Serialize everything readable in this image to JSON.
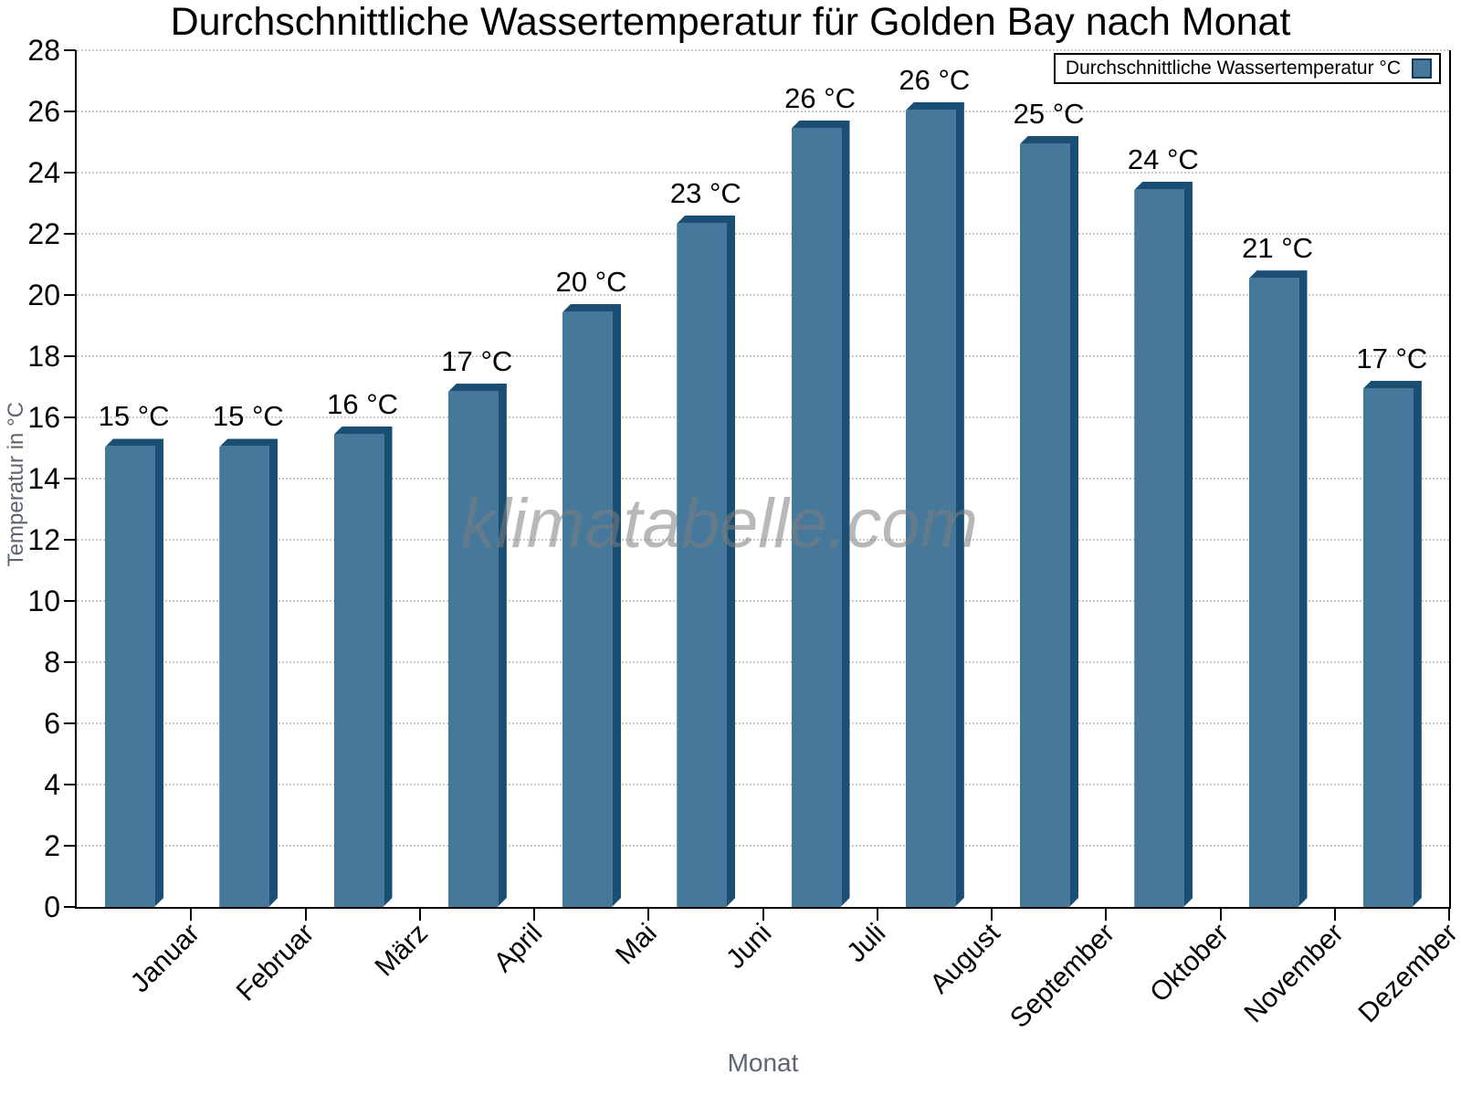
{
  "title": "Durchschnittliche Wassertemperatur für Golden Bay nach Monat",
  "legend": {
    "label": "Durchschnittliche Wassertemperatur °C"
  },
  "watermark": "klimatabelle.com",
  "axis_titles": {
    "x": "Monat",
    "y": "Temperatur in °C"
  },
  "chart_data": {
    "type": "bar",
    "title": "Durchschnittliche Wassertemperatur für Golden Bay nach Monat",
    "categories": [
      "Januar",
      "Februar",
      "März",
      "April",
      "Mai",
      "Juni",
      "Juli",
      "August",
      "September",
      "Oktober",
      "November",
      "Dezember"
    ],
    "values": [
      15.3,
      15.3,
      15.7,
      17.1,
      19.7,
      22.6,
      25.7,
      26.3,
      25.2,
      23.7,
      20.8,
      17.2
    ],
    "bar_labels": [
      "15 °C",
      "15 °C",
      "16 °C",
      "17 °C",
      "20 °C",
      "23 °C",
      "26 °C",
      "26 °C",
      "25 °C",
      "24 °C",
      "21 °C",
      "17 °C"
    ],
    "series_name": "Durchschnittliche Wassertemperatur °C",
    "xlabel": "Monat",
    "ylabel": "Temperatur in °C",
    "ylim": [
      0,
      28
    ],
    "ytick_step": 2,
    "yticks": [
      0,
      2,
      4,
      6,
      8,
      10,
      12,
      14,
      16,
      18,
      20,
      22,
      24,
      26,
      28
    ],
    "grid": "horizontal dotted",
    "legend_position": "top-right",
    "colors": {
      "bar_face": "#45789b",
      "bar_edge": "#1a4e72",
      "grid": "#c9c9c9",
      "axis": "#000000",
      "axis_title_text": "#5b6672",
      "watermark": "#7d7d7d"
    }
  }
}
